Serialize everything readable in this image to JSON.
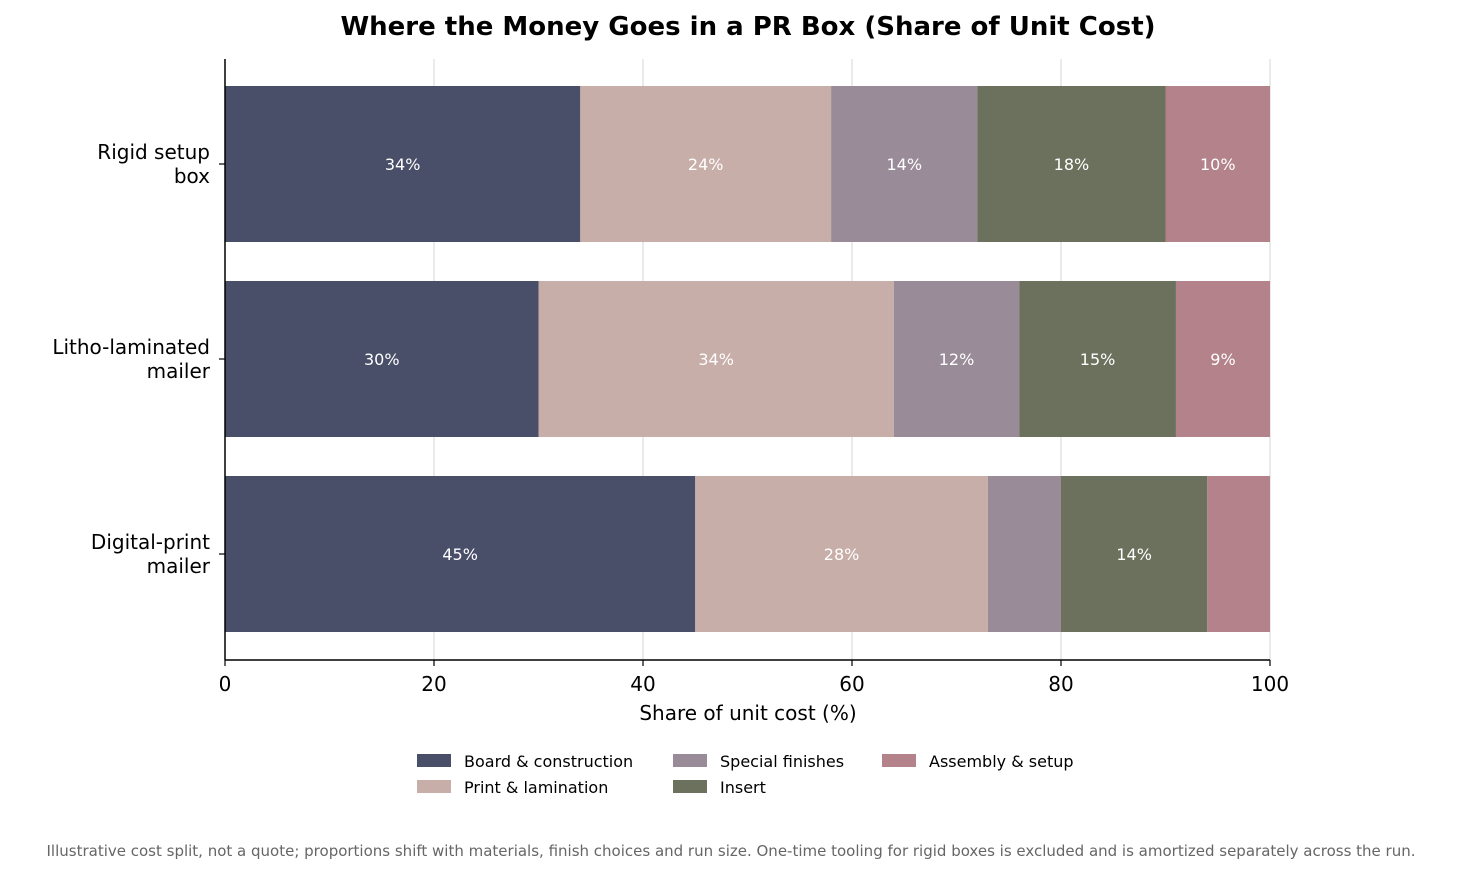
{
  "chart_data": {
    "type": "bar",
    "orientation": "horizontal",
    "stacked": true,
    "title": "Where the Money Goes in a PR Box (Share of Unit Cost)",
    "xlabel": "Share of unit cost (%)",
    "ylabel": "",
    "xlim": [
      0,
      100
    ],
    "xticks": [
      0,
      20,
      40,
      60,
      80,
      100
    ],
    "categories": [
      [
        "Rigid setup",
        "box"
      ],
      [
        "Litho-laminated",
        "mailer"
      ],
      [
        "Digital-print",
        "mailer"
      ]
    ],
    "series": [
      {
        "name": "Board & construction",
        "color": "#4a4f69",
        "values": [
          34,
          30,
          45
        ],
        "labels": [
          "34%",
          "30%",
          "45%"
        ]
      },
      {
        "name": "Print & lamination",
        "color": "#c8aea8",
        "values": [
          24,
          34,
          28
        ],
        "labels": [
          "24%",
          "34%",
          "28%"
        ]
      },
      {
        "name": "Special finishes",
        "color": "#9a8b98",
        "values": [
          14,
          12,
          7
        ],
        "labels": [
          "14%",
          "12%",
          ""
        ]
      },
      {
        "name": "Insert",
        "color": "#6b715d",
        "values": [
          18,
          15,
          14
        ],
        "labels": [
          "18%",
          "15%",
          "14%"
        ]
      },
      {
        "name": "Assembly & setup",
        "color": "#b3828a",
        "values": [
          10,
          9,
          6
        ],
        "labels": [
          "10%",
          "9%",
          ""
        ]
      }
    ],
    "grid": "x",
    "legend_position": "bottom-center"
  },
  "footnote": "Illustrative cost split, not a quote; proportions shift with materials, finish choices and run size. One-time tooling for rigid boxes is excluded and is amortized separately across the run."
}
